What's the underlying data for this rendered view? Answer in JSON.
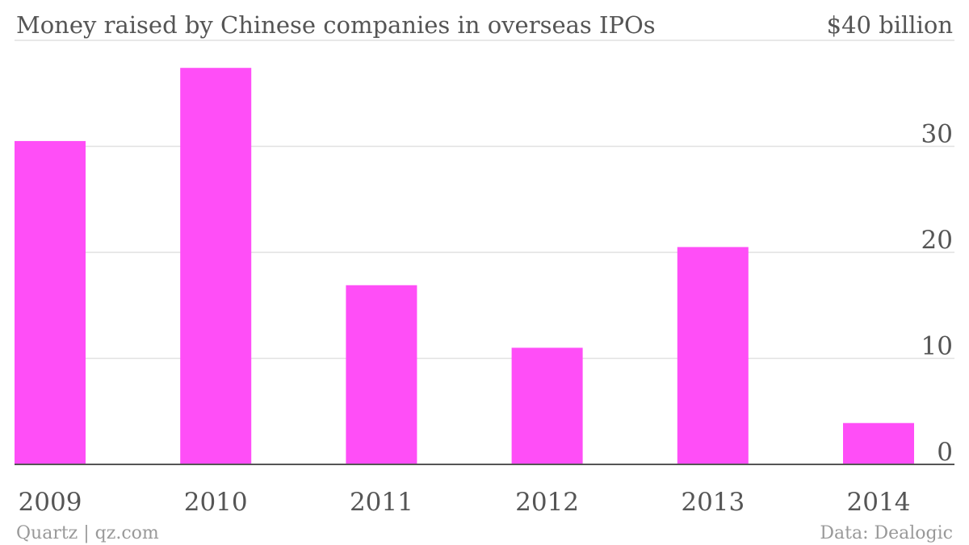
{
  "chart_data": {
    "type": "bar",
    "title": "Money raised by Chinese companies in overseas IPOs",
    "unit_label": "$40 billion",
    "categories": [
      "2009",
      "2010",
      "2011",
      "2012",
      "2013",
      "2014"
    ],
    "values": [
      30.5,
      37.4,
      16.9,
      11.0,
      20.5,
      3.9
    ],
    "ylim": [
      0,
      40
    ],
    "yticks": [
      {
        "value": 40,
        "label": ""
      },
      {
        "value": 30,
        "label": "30"
      },
      {
        "value": 20,
        "label": "20"
      },
      {
        "value": 10,
        "label": "10"
      },
      {
        "value": 0,
        "label": "0"
      }
    ],
    "bar_color": "#ff4ef7",
    "grid": true
  },
  "footer": {
    "source_left": "Quartz | qz.com",
    "source_right": "Data: Dealogic"
  }
}
